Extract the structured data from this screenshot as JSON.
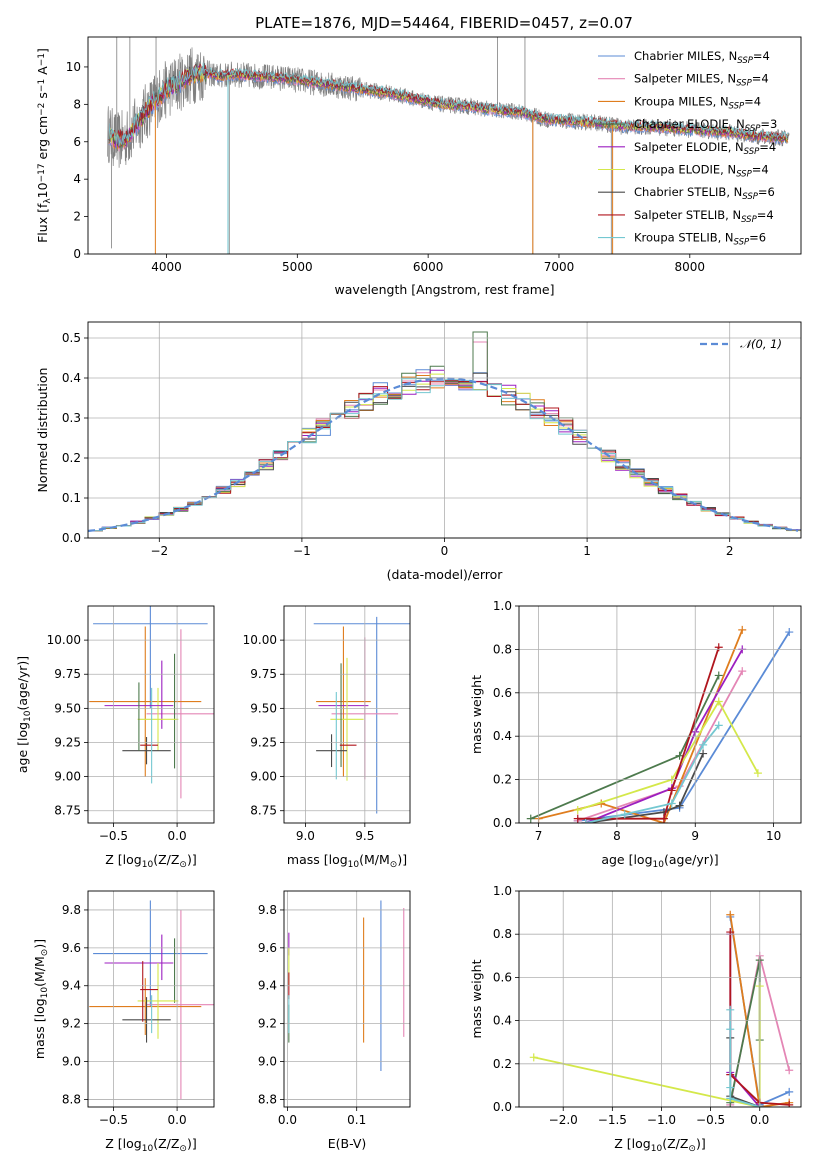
{
  "title": "PLATE=1876, MJD=54464, FIBERID=0457, z=0.07",
  "colors": {
    "Chabrier MILES": "#5b8bd6",
    "Salpeter MILES": "#e486b5",
    "Kroupa MILES": "#df7d1e",
    "Chabrier ELODIE": "#4d7a4d",
    "Salpeter ELODIE": "#9c1fc0",
    "Kroupa ELODIE": "#d4e84a",
    "Chabrier STELIB": "#4a4a4a",
    "Salpeter STELIB": "#b0161e",
    "Kroupa STELIB": "#74c8d1",
    "data": "#808080",
    "normal": "#5b8bd6"
  },
  "chart_data": [
    {
      "id": "spectrum",
      "type": "line",
      "xlabel": "wavelength [Angstrom, rest frame]",
      "ylabel": "Flux [f",
      "ylabel_parts": [
        "Flux [f",
        "λ",
        "10",
        "−17",
        " erg cm",
        "−2",
        " s",
        "−1",
        " A",
        "−1",
        "]"
      ],
      "xlim": [
        3400,
        8850
      ],
      "ylim": [
        0,
        11.6
      ],
      "xticks": [
        4000,
        5000,
        6000,
        7000,
        8000
      ],
      "yticks": [
        0,
        2,
        4,
        6,
        8,
        10
      ],
      "legend_position": "top-right",
      "legend": [
        {
          "name": "Chabrier MILES, N",
          "sub": "SSP",
          "tail": "=4"
        },
        {
          "name": "Salpeter MILES, N",
          "sub": "SSP",
          "tail": "=4"
        },
        {
          "name": "Kroupa MILES, N",
          "sub": "SSP",
          "tail": "=4"
        },
        {
          "name": "Chabrier ELODIE, N",
          "sub": "SSP",
          "tail": "=3"
        },
        {
          "name": "Salpeter ELODIE, N",
          "sub": "SSP",
          "tail": "=4"
        },
        {
          "name": "Kroupa ELODIE, N",
          "sub": "SSP",
          "tail": "=4"
        },
        {
          "name": "Chabrier STELIB, N",
          "sub": "SSP",
          "tail": "=6"
        },
        {
          "name": "Salpeter STELIB, N",
          "sub": "SSP",
          "tail": "=4"
        },
        {
          "name": "Kroupa STELIB, N",
          "sub": "SSP",
          "tail": "=6"
        }
      ],
      "continuum": {
        "x": [
          3550,
          3620,
          3700,
          3800,
          3900,
          4000,
          4100,
          4200,
          4300,
          4400,
          4500,
          4700,
          4900,
          5100,
          5300,
          5500,
          5700,
          5900,
          6100,
          6300,
          6500,
          6700,
          6900,
          7100,
          7300,
          7500,
          7700,
          7900,
          8100,
          8300,
          8500,
          8700,
          8750
        ],
        "y": [
          6.5,
          6.0,
          6.2,
          7.2,
          8.1,
          8.8,
          9.2,
          9.6,
          9.7,
          9.5,
          9.6,
          9.5,
          9.4,
          9.2,
          9.0,
          8.8,
          8.6,
          8.3,
          8.0,
          7.9,
          7.7,
          7.6,
          7.2,
          7.1,
          7.0,
          6.8,
          6.8,
          6.7,
          6.6,
          6.5,
          6.3,
          6.2,
          6.2
        ]
      }
    },
    {
      "id": "residuals",
      "type": "line",
      "xlabel": "(data-model)/error",
      "ylabel": "Normed distribution",
      "xlim": [
        -2.5,
        2.5
      ],
      "ylim": [
        0,
        0.54
      ],
      "xticks": [
        -2,
        -1,
        0,
        1,
        2
      ],
      "yticks": [
        0.0,
        0.1,
        0.2,
        0.3,
        0.4,
        0.5
      ],
      "grid": true,
      "legend_position": "top-right",
      "legend": [
        "𝒩(0, 1)"
      ],
      "bin_width": 0.1
    },
    {
      "id": "age-Z",
      "type": "scatter",
      "xlabel": "Z [log",
      "xlabel_parts": [
        "Z [log",
        "10",
        "(Z/Z",
        "⊙",
        ")]"
      ],
      "ylabel_parts": [
        "age  [log",
        "10",
        "(age/yr)]"
      ],
      "xlim": [
        -0.7,
        0.29
      ],
      "ylim": [
        8.66,
        10.25
      ],
      "xticks": [
        -0.5,
        0.0
      ],
      "yticks": [
        8.75,
        9.0,
        9.25,
        9.5,
        9.75,
        10.0
      ],
      "grid": true,
      "points": [
        {
          "model": "Chabrier MILES",
          "x": -0.21,
          "xerr": 0.45,
          "y": 10.12,
          "yerr": 0.62
        },
        {
          "model": "Salpeter MILES",
          "x": 0.03,
          "xerr": 0.27,
          "y": 9.46,
          "yerr": 0.62
        },
        {
          "model": "Kroupa MILES",
          "x": -0.25,
          "xerr": 0.44,
          "y": 9.55,
          "yerr": 0.55
        },
        {
          "model": "Chabrier ELODIE",
          "x": -0.02,
          "xerr": 0.0,
          "y": 9.48,
          "yerr": 0.42
        },
        {
          "model": "Salpeter ELODIE",
          "x": -0.12,
          "xerr": 0.0,
          "y": 9.6,
          "yerr": 0.25
        },
        {
          "model": "Kroupa ELODIE",
          "x": -0.15,
          "xerr": 0.16,
          "y": 9.42,
          "yerr": 0.23
        },
        {
          "model": "Chabrier STELIB",
          "x": -0.24,
          "xerr": 0.19,
          "y": 9.19,
          "yerr": 0.1
        },
        {
          "model": "Salpeter STELIB",
          "x": -0.22,
          "xerr": 0.07,
          "y": 9.23,
          "yerr": 0.0
        },
        {
          "model": "Kroupa STELIB",
          "x": -0.2,
          "xerr": 0.0,
          "y": 9.3,
          "yerr": 0.35
        },
        {
          "model": "Salpeter ELODIE",
          "x": -0.3,
          "xerr": 0.27,
          "y": 9.52,
          "yerr": 0.0
        },
        {
          "model": "Chabrier ELODIE",
          "x": -0.3,
          "xerr": 0.0,
          "y": 9.44,
          "yerr": 0.25
        }
      ]
    },
    {
      "id": "age-mass",
      "type": "scatter",
      "xlabel_parts": [
        "mass [log",
        "10",
        "(M/M",
        "⊙",
        ")]"
      ],
      "xlim": [
        8.82,
        9.88
      ],
      "ylim": [
        8.66,
        10.25
      ],
      "xticks": [
        9.0,
        9.5
      ],
      "yticks": [
        8.75,
        9.0,
        9.25,
        9.5,
        9.75,
        10.0
      ],
      "grid": true,
      "points": [
        {
          "model": "Chabrier MILES",
          "x": 9.57,
          "xerr": 0.5,
          "y": 10.12,
          "yerr": 0.0
        },
        {
          "model": "Chabrier MILES",
          "x": 9.6,
          "xerr": 0.0,
          "y": 9.45,
          "yerr": 0.72
        },
        {
          "model": "Salpeter MILES",
          "x": 9.5,
          "xerr": 0.28,
          "y": 9.46,
          "yerr": 0.0
        },
        {
          "model": "Salpeter MILES",
          "x": 9.5,
          "xerr": 0.0,
          "y": 9.5,
          "yerr": 0.52
        },
        {
          "model": "Kroupa MILES",
          "x": 9.32,
          "xerr": 0.23,
          "y": 9.55,
          "yerr": 0.55
        },
        {
          "model": "Salpeter ELODIE",
          "x": 9.32,
          "xerr": 0.21,
          "y": 9.52,
          "yerr": 0.0
        },
        {
          "model": "Kroupa ELODIE",
          "x": 9.35,
          "xerr": 0.14,
          "y": 9.42,
          "yerr": 0.45
        },
        {
          "model": "Chabrier ELODIE",
          "x": 9.3,
          "xerr": 0.0,
          "y": 9.45,
          "yerr": 0.38
        },
        {
          "model": "Chabrier STELIB",
          "x": 9.22,
          "xerr": 0.13,
          "y": 9.19,
          "yerr": 0.12
        },
        {
          "model": "Salpeter STELIB",
          "x": 9.36,
          "xerr": 0.07,
          "y": 9.23,
          "yerr": 0.0
        },
        {
          "model": "Kroupa STELIB",
          "x": 9.26,
          "xerr": 0.0,
          "y": 9.3,
          "yerr": 0.32
        }
      ]
    },
    {
      "id": "mass-weight-age",
      "type": "line",
      "xlabel_parts": [
        "age  [log",
        "10",
        "(age/yr)]"
      ],
      "ylabel": "mass weight",
      "xlim": [
        6.75,
        10.35
      ],
      "ylim": [
        0,
        1.0
      ],
      "xticks": [
        7,
        8,
        9,
        10
      ],
      "yticks": [
        0.0,
        0.2,
        0.4,
        0.6,
        0.8,
        1.0
      ],
      "grid": true,
      "series": [
        {
          "name": "Chabrier MILES",
          "x": [
            7.5,
            8.8,
            10.2
          ],
          "y": [
            0.01,
            0.07,
            0.88
          ]
        },
        {
          "name": "Salpeter MILES",
          "x": [
            7.5,
            8.8,
            9.6
          ],
          "y": [
            0.01,
            0.17,
            0.7
          ]
        },
        {
          "name": "Kroupa MILES",
          "x": [
            7.0,
            7.8,
            8.6,
            9.6
          ],
          "y": [
            0.02,
            0.09,
            0.0,
            0.89
          ]
        },
        {
          "name": "Chabrier ELODIE",
          "x": [
            6.9,
            8.8,
            9.3
          ],
          "y": [
            0.02,
            0.31,
            0.68
          ]
        },
        {
          "name": "Salpeter ELODIE",
          "x": [
            7.6,
            8.7,
            9.0,
            9.6
          ],
          "y": [
            0.0,
            0.16,
            0.42,
            0.8
          ]
        },
        {
          "name": "Kroupa ELODIE",
          "x": [
            7.5,
            8.7,
            9.3,
            9.8
          ],
          "y": [
            0.06,
            0.2,
            0.56,
            0.23
          ]
        },
        {
          "name": "Chabrier STELIB",
          "x": [
            7.6,
            8.6,
            8.8,
            9.1
          ],
          "y": [
            0.0,
            0.05,
            0.08,
            0.32
          ]
        },
        {
          "name": "Salpeter STELIB",
          "x": [
            7.5,
            8.6,
            8.7,
            9.3
          ],
          "y": [
            0.02,
            0.02,
            0.15,
            0.81
          ]
        },
        {
          "name": "Kroupa STELIB",
          "x": [
            7.6,
            8.1,
            8.7,
            9.1,
            9.3
          ],
          "y": [
            0.0,
            0.04,
            0.09,
            0.36,
            0.45
          ]
        }
      ]
    },
    {
      "id": "mass-Z",
      "type": "scatter",
      "xlabel_parts": [
        "Z [log",
        "10",
        "(Z/Z",
        "⊙",
        ")]"
      ],
      "ylabel_parts": [
        "mass [log",
        "10",
        "(M/M",
        "⊙",
        ")]"
      ],
      "xlim": [
        -0.7,
        0.29
      ],
      "ylim": [
        8.76,
        9.9
      ],
      "xticks": [
        -0.5,
        0.0
      ],
      "yticks": [
        8.8,
        9.0,
        9.2,
        9.4,
        9.6,
        9.8
      ],
      "grid": true,
      "points": [
        {
          "model": "Chabrier MILES",
          "x": -0.21,
          "xerr": 0.45,
          "y": 9.57,
          "yerr": 0.28
        },
        {
          "model": "Salpeter MILES",
          "x": 0.03,
          "xerr": 0.27,
          "y": 9.3,
          "yerr": 0.5
        },
        {
          "model": "Kroupa MILES",
          "x": -0.25,
          "xerr": 0.44,
          "y": 9.29,
          "yerr": 0.15
        },
        {
          "model": "Chabrier ELODIE",
          "x": -0.02,
          "xerr": 0.0,
          "y": 9.48,
          "yerr": 0.17
        },
        {
          "model": "Salpeter ELODIE",
          "x": -0.12,
          "xerr": 0.0,
          "y": 9.55,
          "yerr": 0.12
        },
        {
          "model": "Salpeter ELODIE",
          "x": -0.3,
          "xerr": 0.27,
          "y": 9.52,
          "yerr": 0.0
        },
        {
          "model": "Kroupa ELODIE",
          "x": -0.15,
          "xerr": 0.16,
          "y": 9.32,
          "yerr": 0.2
        },
        {
          "model": "Chabrier STELIB",
          "x": -0.24,
          "xerr": 0.19,
          "y": 9.22,
          "yerr": 0.12
        },
        {
          "model": "Salpeter STELIB",
          "x": -0.22,
          "xerr": 0.07,
          "y": 9.38,
          "yerr": 0.0
        },
        {
          "model": "Salpeter STELIB",
          "x": -0.27,
          "xerr": 0.0,
          "y": 9.37,
          "yerr": 0.16
        },
        {
          "model": "Kroupa STELIB",
          "x": -0.2,
          "xerr": 0.0,
          "y": 9.25,
          "yerr": 0.1
        }
      ]
    },
    {
      "id": "mass-ebv",
      "type": "scatter",
      "xlabel": "E(B-V)",
      "xlim": [
        -0.005,
        0.177
      ],
      "ylim": [
        8.76,
        9.9
      ],
      "xticks": [
        0.0,
        0.1
      ],
      "yticks": [
        8.8,
        9.0,
        9.2,
        9.4,
        9.6,
        9.8
      ],
      "grid": true,
      "points": [
        {
          "model": "Chabrier MILES",
          "x": 0.135,
          "y": 9.4,
          "yerr": 0.45
        },
        {
          "model": "Salpeter MILES",
          "x": 0.168,
          "y": 9.47,
          "yerr": 0.34
        },
        {
          "model": "Kroupa MILES",
          "x": 0.11,
          "y": 9.43,
          "yerr": 0.33
        },
        {
          "model": "Salpeter ELODIE",
          "x": 0.002,
          "y": 9.62,
          "yerr": 0.06
        },
        {
          "model": "Kroupa ELODIE",
          "x": 0.002,
          "y": 9.5,
          "yerr": 0.1
        },
        {
          "model": "Salpeter STELIB",
          "x": 0.002,
          "y": 9.4,
          "yerr": 0.07
        },
        {
          "model": "Chabrier ELODIE",
          "x": 0.002,
          "y": 9.2,
          "yerr": 0.1
        },
        {
          "model": "Kroupa STELIB",
          "x": 0.002,
          "y": 9.25,
          "yerr": 0.1
        }
      ]
    },
    {
      "id": "mass-weight-Z",
      "type": "line",
      "xlabel_parts": [
        "Z [log",
        "10",
        "(Z/Z",
        "⊙",
        ")]"
      ],
      "ylabel": "mass weight",
      "xlim": [
        -2.45,
        0.42
      ],
      "ylim": [
        0,
        1.0
      ],
      "xticks": [
        -2.0,
        -1.5,
        -1.0,
        -0.5,
        0.0
      ],
      "yticks": [
        0.0,
        0.2,
        0.4,
        0.6,
        0.8,
        1.0
      ],
      "grid": true,
      "series": [
        {
          "name": "Chabrier MILES",
          "x": [
            -0.3,
            0.0,
            0.3
          ],
          "y": [
            0.88,
            0.01,
            0.07
          ]
        },
        {
          "name": "Salpeter MILES",
          "x": [
            -0.3,
            0.0,
            0.3
          ],
          "y": [
            0.01,
            0.7,
            0.17
          ]
        },
        {
          "name": "Kroupa MILES",
          "x": [
            -0.3,
            0.0,
            0.3
          ],
          "y": [
            0.89,
            0.0,
            0.02
          ]
        },
        {
          "name": "Chabrier ELODIE",
          "x": [
            -0.3,
            0.0,
            0.0
          ],
          "y": [
            0.02,
            0.68,
            0.31
          ]
        },
        {
          "name": "Salpeter ELODIE",
          "x": [
            -0.3,
            -0.3,
            0.0
          ],
          "y": [
            0.8,
            0.16,
            0.0
          ]
        },
        {
          "name": "Kroupa ELODIE",
          "x": [
            -2.3,
            0.0,
            0.0
          ],
          "y": [
            0.23,
            0.0,
            0.56
          ]
        },
        {
          "name": "Chabrier STELIB",
          "x": [
            -0.3,
            -0.3,
            0.0
          ],
          "y": [
            0.32,
            0.05,
            0.0
          ]
        },
        {
          "name": "Salpeter STELIB",
          "x": [
            -0.3,
            -0.3,
            0.0,
            0.3
          ],
          "y": [
            0.81,
            0.15,
            0.02,
            0.01
          ]
        },
        {
          "name": "Kroupa STELIB",
          "x": [
            -0.3,
            -0.3,
            -0.3,
            -0.3,
            0.0,
            0.0
          ],
          "y": [
            0.45,
            0.36,
            0.09,
            0.04,
            0.0,
            0.0
          ]
        }
      ]
    }
  ]
}
